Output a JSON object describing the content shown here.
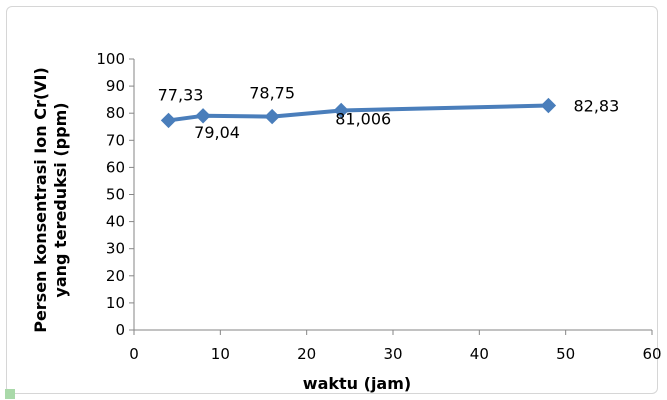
{
  "chart_data": {
    "type": "line",
    "xlabel": "waktu (jam)",
    "ylabel": [
      "Persen konsentrasi Ion Cr(VI)",
      "yang tereduksi (ppm)"
    ],
    "xlim": [
      0,
      60
    ],
    "ylim": [
      0,
      100
    ],
    "xticks": [
      "0",
      "10",
      "20",
      "30",
      "40",
      "50",
      "60"
    ],
    "yticks": [
      "0",
      "10",
      "20",
      "30",
      "40",
      "50",
      "60",
      "70",
      "80",
      "90",
      "100"
    ],
    "grid": false,
    "legend": "none",
    "series": [
      {
        "x": [
          4,
          8,
          16,
          24,
          48
        ],
        "y": [
          77.33,
          79.04,
          78.75,
          81.006,
          82.83
        ],
        "labels": [
          "77,33",
          "79,04",
          "78,75",
          "81,006",
          "82,83"
        ],
        "color": "#4a7ebb",
        "marker": "diamond"
      }
    ]
  }
}
